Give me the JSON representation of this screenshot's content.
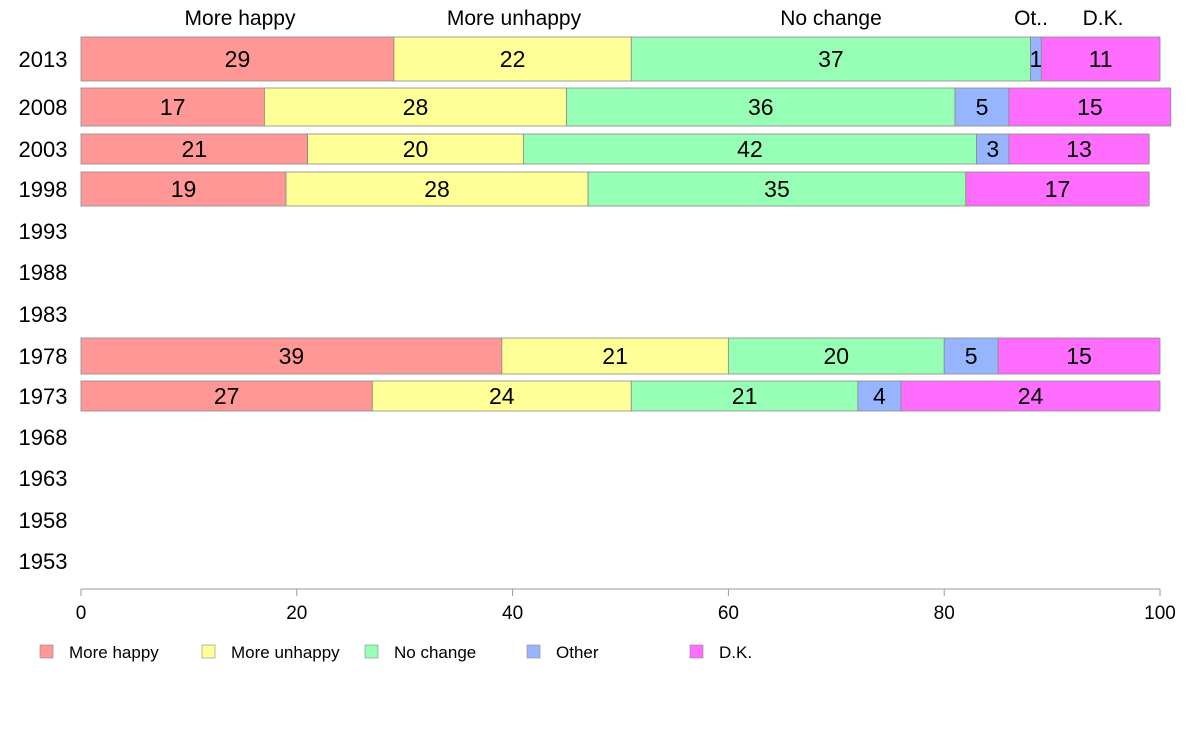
{
  "chart_data": {
    "type": "bar",
    "orientation": "horizontal",
    "stacked": true,
    "categories": [
      "2013",
      "2008",
      "2003",
      "1998",
      "1993",
      "1988",
      "1983",
      "1978",
      "1973",
      "1968",
      "1963",
      "1958",
      "1953"
    ],
    "series": [
      {
        "name": "More happy",
        "color": "#ff9797",
        "values": [
          29,
          17,
          21,
          19,
          null,
          null,
          null,
          39,
          27,
          null,
          null,
          null,
          null
        ]
      },
      {
        "name": "More unhappy",
        "color": "#ffff97",
        "values": [
          22,
          28,
          20,
          28,
          null,
          null,
          null,
          21,
          24,
          null,
          null,
          null,
          null
        ]
      },
      {
        "name": "No change",
        "color": "#97ffb5",
        "values": [
          37,
          36,
          42,
          35,
          null,
          null,
          null,
          20,
          21,
          null,
          null,
          null,
          null
        ]
      },
      {
        "name": "Other",
        "color": "#97b5ff",
        "values": [
          1,
          5,
          3,
          0,
          null,
          null,
          null,
          5,
          4,
          null,
          null,
          null,
          null
        ]
      },
      {
        "name": "D.K.",
        "color": "#ff6dff",
        "values": [
          11,
          15,
          13,
          17,
          null,
          null,
          null,
          15,
          24,
          null,
          null,
          null,
          null
        ]
      }
    ],
    "top_labels": [
      "More happy",
      "More unhappy",
      "No change",
      "Ot..",
      "D.K."
    ],
    "xlim": [
      0,
      100
    ],
    "xticks": [
      "0",
      "20",
      "40",
      "60",
      "80",
      "100"
    ],
    "grid": false,
    "legend_position": "bottom"
  }
}
